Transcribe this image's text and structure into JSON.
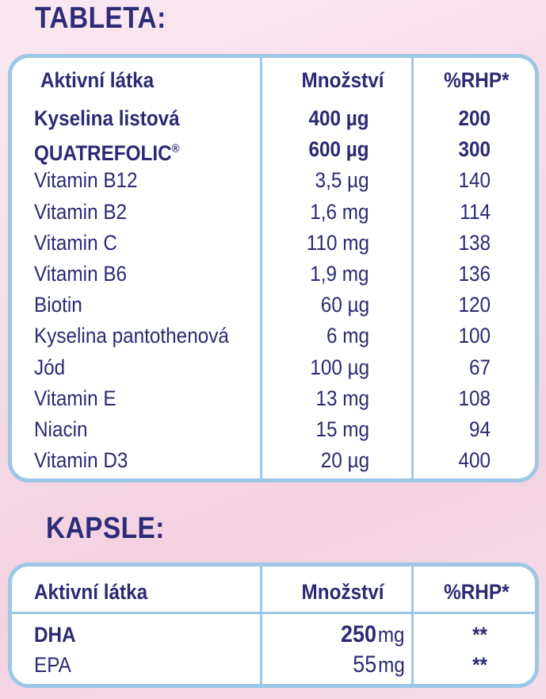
{
  "tableta": {
    "title": "TABLETA:",
    "headers": {
      "name": "Aktivní látka",
      "amount": "Množství",
      "rhp": "%RHP*"
    },
    "rows": [
      {
        "name": "Kyselina listová",
        "amount": "400 µg",
        "rhp": "200",
        "bold": true
      },
      {
        "name": "QUATREFOLIC",
        "reg": "®",
        "amount": "600 µg",
        "rhp": "300",
        "bold": true
      },
      {
        "name": "Vitamin B12",
        "amount": "3,5 µg",
        "rhp": "140"
      },
      {
        "name": "Vitamin B2",
        "amount": "1,6 mg",
        "rhp": "114"
      },
      {
        "name": "Vitamin C",
        "amount": "110 mg",
        "rhp": "138"
      },
      {
        "name": "Vitamin B6",
        "amount": "1,9 mg",
        "rhp": "136"
      },
      {
        "name": "Biotin",
        "amount": "60 µg",
        "rhp": "120"
      },
      {
        "name": "Kyselina pantothenová",
        "amount": "6 mg",
        "rhp": "100"
      },
      {
        "name": "Jód",
        "amount": "100 µg",
        "rhp": "67"
      },
      {
        "name": "Vitamin E",
        "amount": "13 mg",
        "rhp": "108"
      },
      {
        "name": "Niacin",
        "amount": "15 mg",
        "rhp": "94"
      },
      {
        "name": "Vitamin D3",
        "amount": "20 µg",
        "rhp": "400"
      }
    ]
  },
  "kapsle": {
    "title": "KAPSLE:",
    "headers": {
      "name": "Aktivní látka",
      "amount": "Množství",
      "rhp": "%RHP*"
    },
    "rows": [
      {
        "name": "DHA",
        "amount_value": "250",
        "amount_unit": "mg",
        "rhp": "**",
        "bold": true
      },
      {
        "name": "EPA",
        "amount_value": "55",
        "amount_unit": "mg",
        "rhp": "**"
      }
    ]
  },
  "colors": {
    "text": "#2b2a72",
    "border": "#9cc8e6",
    "background": "#f7dbe8"
  }
}
